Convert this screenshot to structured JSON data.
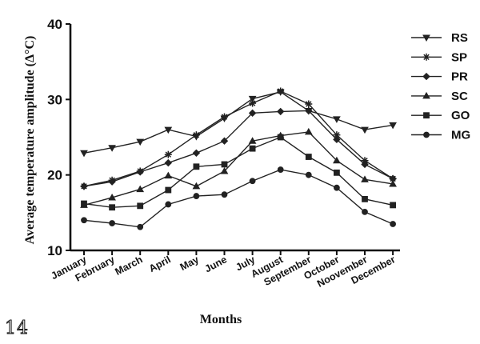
{
  "figure_number": "14",
  "chart_data": {
    "type": "line",
    "xlabel": "Months",
    "ylabel": "Average temperature amplitude (Δ°C)",
    "ylim": [
      10,
      40
    ],
    "yticks": [
      "10",
      "20",
      "30",
      "40"
    ],
    "categories": [
      "January",
      "February",
      "March",
      "April",
      "May",
      "June",
      "July",
      "August",
      "September",
      "October",
      "Noovember",
      "December"
    ],
    "legend_position": "top-right",
    "grid": false,
    "series": [
      {
        "name": "RS",
        "marker": "triangle-down",
        "values": [
          22.9,
          23.6,
          24.4,
          26.0,
          25.1,
          27.5,
          30.1,
          31.0,
          28.5,
          27.4,
          26.0,
          26.6
        ]
      },
      {
        "name": "SP",
        "marker": "star",
        "values": [
          18.5,
          19.3,
          20.5,
          22.7,
          25.3,
          27.7,
          29.5,
          31.1,
          29.4,
          25.3,
          21.9,
          19.5
        ]
      },
      {
        "name": "PR",
        "marker": "diamond",
        "values": [
          18.5,
          19.1,
          20.4,
          21.6,
          22.9,
          24.5,
          28.2,
          28.4,
          28.5,
          24.7,
          21.4,
          19.5
        ]
      },
      {
        "name": "SC",
        "marker": "triangle-up",
        "values": [
          16.0,
          17.0,
          18.1,
          19.9,
          18.5,
          20.5,
          24.5,
          25.2,
          25.7,
          21.9,
          19.4,
          18.8
        ]
      },
      {
        "name": "GO",
        "marker": "square",
        "values": [
          16.2,
          15.7,
          15.9,
          18.0,
          21.1,
          21.4,
          23.5,
          25.0,
          22.4,
          20.3,
          16.8,
          16.0
        ]
      },
      {
        "name": "MG",
        "marker": "circle",
        "values": [
          14.0,
          13.6,
          13.1,
          16.1,
          17.2,
          17.4,
          19.2,
          20.7,
          20.0,
          18.3,
          15.1,
          13.5
        ]
      }
    ]
  }
}
